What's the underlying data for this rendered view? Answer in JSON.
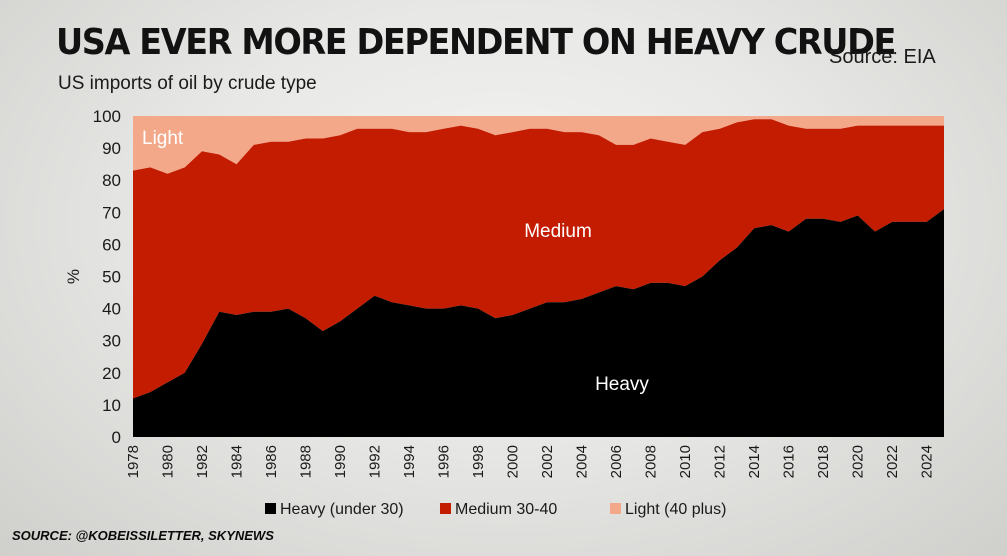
{
  "title": "USA EVER MORE DEPENDENT ON HEAVY CRUDE",
  "subtitle": "US imports of oil by crude type",
  "source_label": "Source: EIA",
  "footer": "SOURCE: @KOBEISSILETTER, SKYNEWS",
  "colors": {
    "heavy": "#000000",
    "medium": "#c41c00",
    "light": "#f3a88a"
  },
  "chart_data": {
    "type": "area",
    "stacked": true,
    "ylabel": "%",
    "ylim": [
      0,
      100
    ],
    "yticks": [
      0,
      10,
      20,
      30,
      40,
      50,
      60,
      70,
      80,
      90,
      100
    ],
    "xticks": [
      "1978",
      "1980",
      "1982",
      "1984",
      "1986",
      "1988",
      "1990",
      "1992",
      "1994",
      "1996",
      "1998",
      "2000",
      "2002",
      "2004",
      "2006",
      "2008",
      "2010",
      "2012",
      "2014",
      "2016",
      "2018",
      "2020",
      "2022",
      "2024"
    ],
    "legend_position": "bottom",
    "legend": [
      "Heavy (under 30)",
      "Medium 30-40",
      "Light (40 plus)"
    ],
    "area_labels": {
      "heavy": "Heavy",
      "medium": "Medium",
      "light": "Light"
    },
    "x": [
      1978,
      1979,
      1980,
      1981,
      1982,
      1983,
      1984,
      1985,
      1986,
      1987,
      1988,
      1989,
      1990,
      1991,
      1992,
      1993,
      1994,
      1995,
      1996,
      1997,
      1998,
      1999,
      2000,
      2001,
      2002,
      2003,
      2004,
      2005,
      2006,
      2007,
      2008,
      2009,
      2010,
      2011,
      2012,
      2013,
      2014,
      2015,
      2016,
      2017,
      2018,
      2019,
      2020,
      2021,
      2022,
      2023,
      2024,
      2025
    ],
    "heavy": [
      12,
      14,
      17,
      20,
      29,
      39,
      38,
      39,
      39,
      40,
      37,
      33,
      36,
      40,
      44,
      42,
      41,
      40,
      40,
      41,
      40,
      37,
      38,
      40,
      42,
      42,
      43,
      45,
      47,
      46,
      48,
      48,
      47,
      50,
      55,
      59,
      65,
      66,
      64,
      68,
      68,
      67,
      69,
      64,
      67,
      67,
      67,
      71
    ],
    "medium_plus_heavy": [
      83,
      84,
      82,
      84,
      89,
      88,
      85,
      91,
      92,
      92,
      93,
      93,
      94,
      96,
      96,
      96,
      95,
      95,
      96,
      97,
      96,
      94,
      95,
      96,
      96,
      95,
      95,
      94,
      91,
      91,
      93,
      92,
      91,
      95,
      96,
      98,
      99,
      99,
      97,
      96,
      96,
      96,
      97,
      97,
      97,
      97,
      97,
      97
    ],
    "total": 100
  }
}
